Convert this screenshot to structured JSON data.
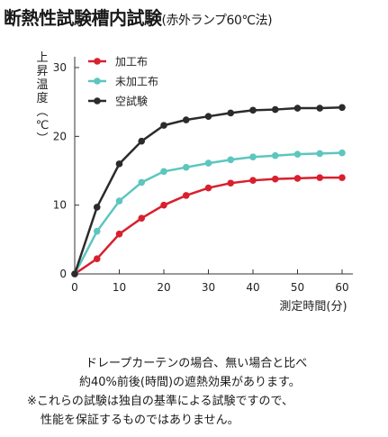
{
  "title": {
    "main": "断熱性試験槽内試験",
    "sub": "(赤外ランプ60℃法)"
  },
  "chart_data": {
    "type": "line",
    "ylabel": "上昇温度(℃)",
    "xlabel": "測定時間(分)",
    "xlim": [
      0,
      60
    ],
    "ylim": [
      0,
      30
    ],
    "x_ticks": [
      0,
      10,
      20,
      30,
      40,
      50,
      60
    ],
    "y_ticks": [
      0,
      10,
      20,
      30
    ],
    "grid": false,
    "legend_position": "top-left",
    "x": [
      0,
      5,
      10,
      15,
      20,
      25,
      30,
      35,
      40,
      45,
      50,
      55,
      60
    ],
    "series": [
      {
        "name": "加工布",
        "color": "#d8202e",
        "values": [
          0,
          2.2,
          5.8,
          8.1,
          10.0,
          11.4,
          12.5,
          13.2,
          13.6,
          13.8,
          13.9,
          14.0,
          14.0
        ]
      },
      {
        "name": "未加工布",
        "color": "#5cc6bf",
        "values": [
          0,
          6.2,
          10.6,
          13.3,
          14.9,
          15.5,
          16.1,
          16.6,
          17.0,
          17.2,
          17.4,
          17.5,
          17.6
        ]
      },
      {
        "name": "空試験",
        "color": "#2b2b2b",
        "values": [
          0,
          9.7,
          16.0,
          19.3,
          21.6,
          22.4,
          22.9,
          23.4,
          23.8,
          23.9,
          24.1,
          24.1,
          24.2
        ]
      }
    ]
  },
  "notes": [
    "ドレープカーテンの場合、無い場合と比べ",
    "約40%前後(時間)の遮熱効果があります。",
    "※これらの試験は独自の基準による試験ですので、",
    "性能を保証するものではありません。"
  ]
}
